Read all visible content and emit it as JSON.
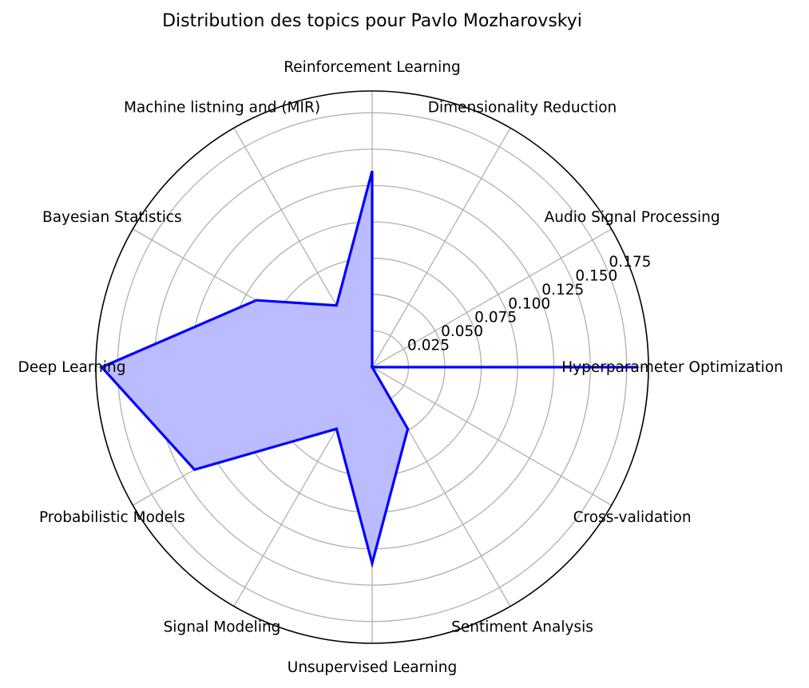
{
  "chart_data": {
    "type": "radar",
    "title": "Distribution des topics pour Pavlo Mozharovskyi",
    "categories": [
      "Hyperparameter Optimization",
      "Audio Signal Processing",
      "Dimensionality Reduction",
      "Reinforcement Learning",
      "Machine listning and (MIR)",
      "Bayesian Statistics",
      "Deep Learning",
      "Probabilistic Models",
      "Signal Modeling",
      "Unsupervised Learning",
      "Sentiment Analysis",
      "Cross-validation"
    ],
    "values": [
      0.183,
      0.0,
      0.0,
      0.135,
      0.049,
      0.092,
      0.186,
      0.141,
      0.049,
      0.135,
      0.049,
      0.0
    ],
    "rticks": [
      0.025,
      0.05,
      0.075,
      0.1,
      0.125,
      0.15,
      0.175
    ],
    "rtick_labels": [
      "0.025",
      "0.050",
      "0.075",
      "0.100",
      "0.125",
      "0.150",
      "0.175"
    ],
    "rmax": 0.19,
    "grid": true,
    "colors": {
      "line": "#0000ff",
      "fill": "#bbbbff",
      "grid": "#b0b0b0",
      "frame": "#000000"
    }
  }
}
